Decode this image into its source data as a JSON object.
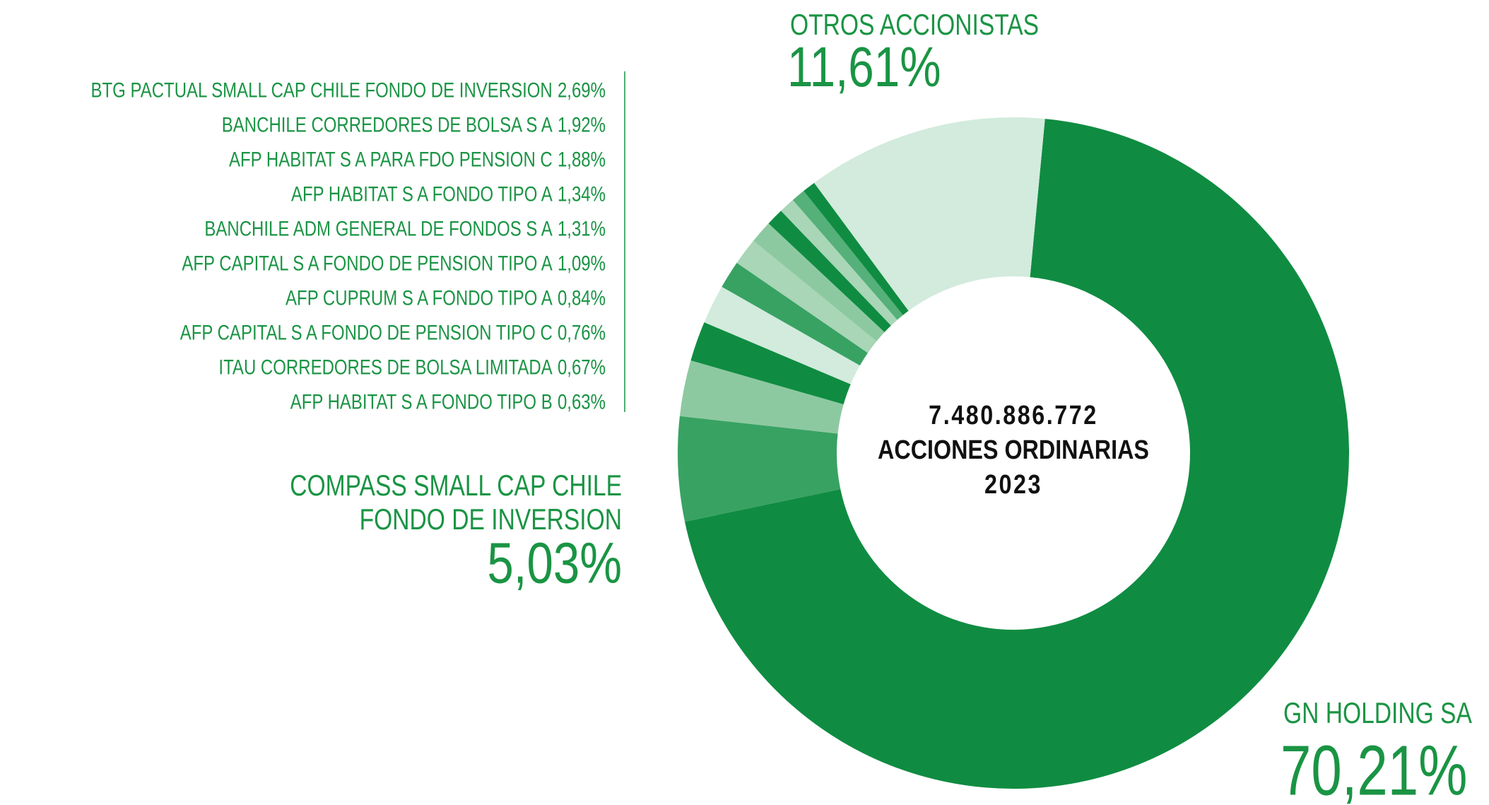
{
  "chart_data": {
    "type": "donut",
    "center_text": [
      "7.480.886.772",
      "ACCIONES ORDINARIAS",
      "2023"
    ],
    "categories": [
      "GN HOLDING SA",
      "COMPASS SMALL CAP CHILE FONDO DE INVERSION",
      "BTG PACTUAL SMALL CAP CHILE FONDO DE INVERSION",
      "BANCHILE CORREDORES DE BOLSA S A",
      "AFP HABITAT S A PARA FDO PENSION C",
      "AFP HABITAT S A FONDO TIPO A",
      "BANCHILE ADM GENERAL DE FONDOS S A",
      "AFP CAPITAL S A FONDO DE PENSION TIPO A",
      "AFP CUPRUM S A FONDO TIPO A",
      "AFP CAPITAL S A FONDO DE PENSION TIPO C",
      "ITAU CORREDORES DE BOLSA LIMITADA",
      "AFP HABITAT S A FONDO TIPO B",
      "OTROS ACCIONISTAS"
    ],
    "values": [
      70.21,
      5.03,
      2.69,
      1.92,
      1.88,
      1.34,
      1.31,
      1.09,
      0.84,
      0.76,
      0.67,
      0.63,
      11.61
    ],
    "value_labels": [
      "70,21%",
      "5,03%",
      "2,69%",
      "1,92%",
      "1,88%",
      "1,34%",
      "1,31%",
      "1,09%",
      "0,84%",
      "0,76%",
      "0,67%",
      "0,63%",
      "11,61%"
    ],
    "colors": [
      "#0f8c42",
      "#38a263",
      "#8dc9a0",
      "#0f8c42",
      "#d2ebdc",
      "#38a263",
      "#a8d6b6",
      "#8dc9a0",
      "#0f8c42",
      "#a8d6b6",
      "#55b079",
      "#0f8c42",
      "#d2ebdc"
    ],
    "label_color": "#1a9444"
  }
}
